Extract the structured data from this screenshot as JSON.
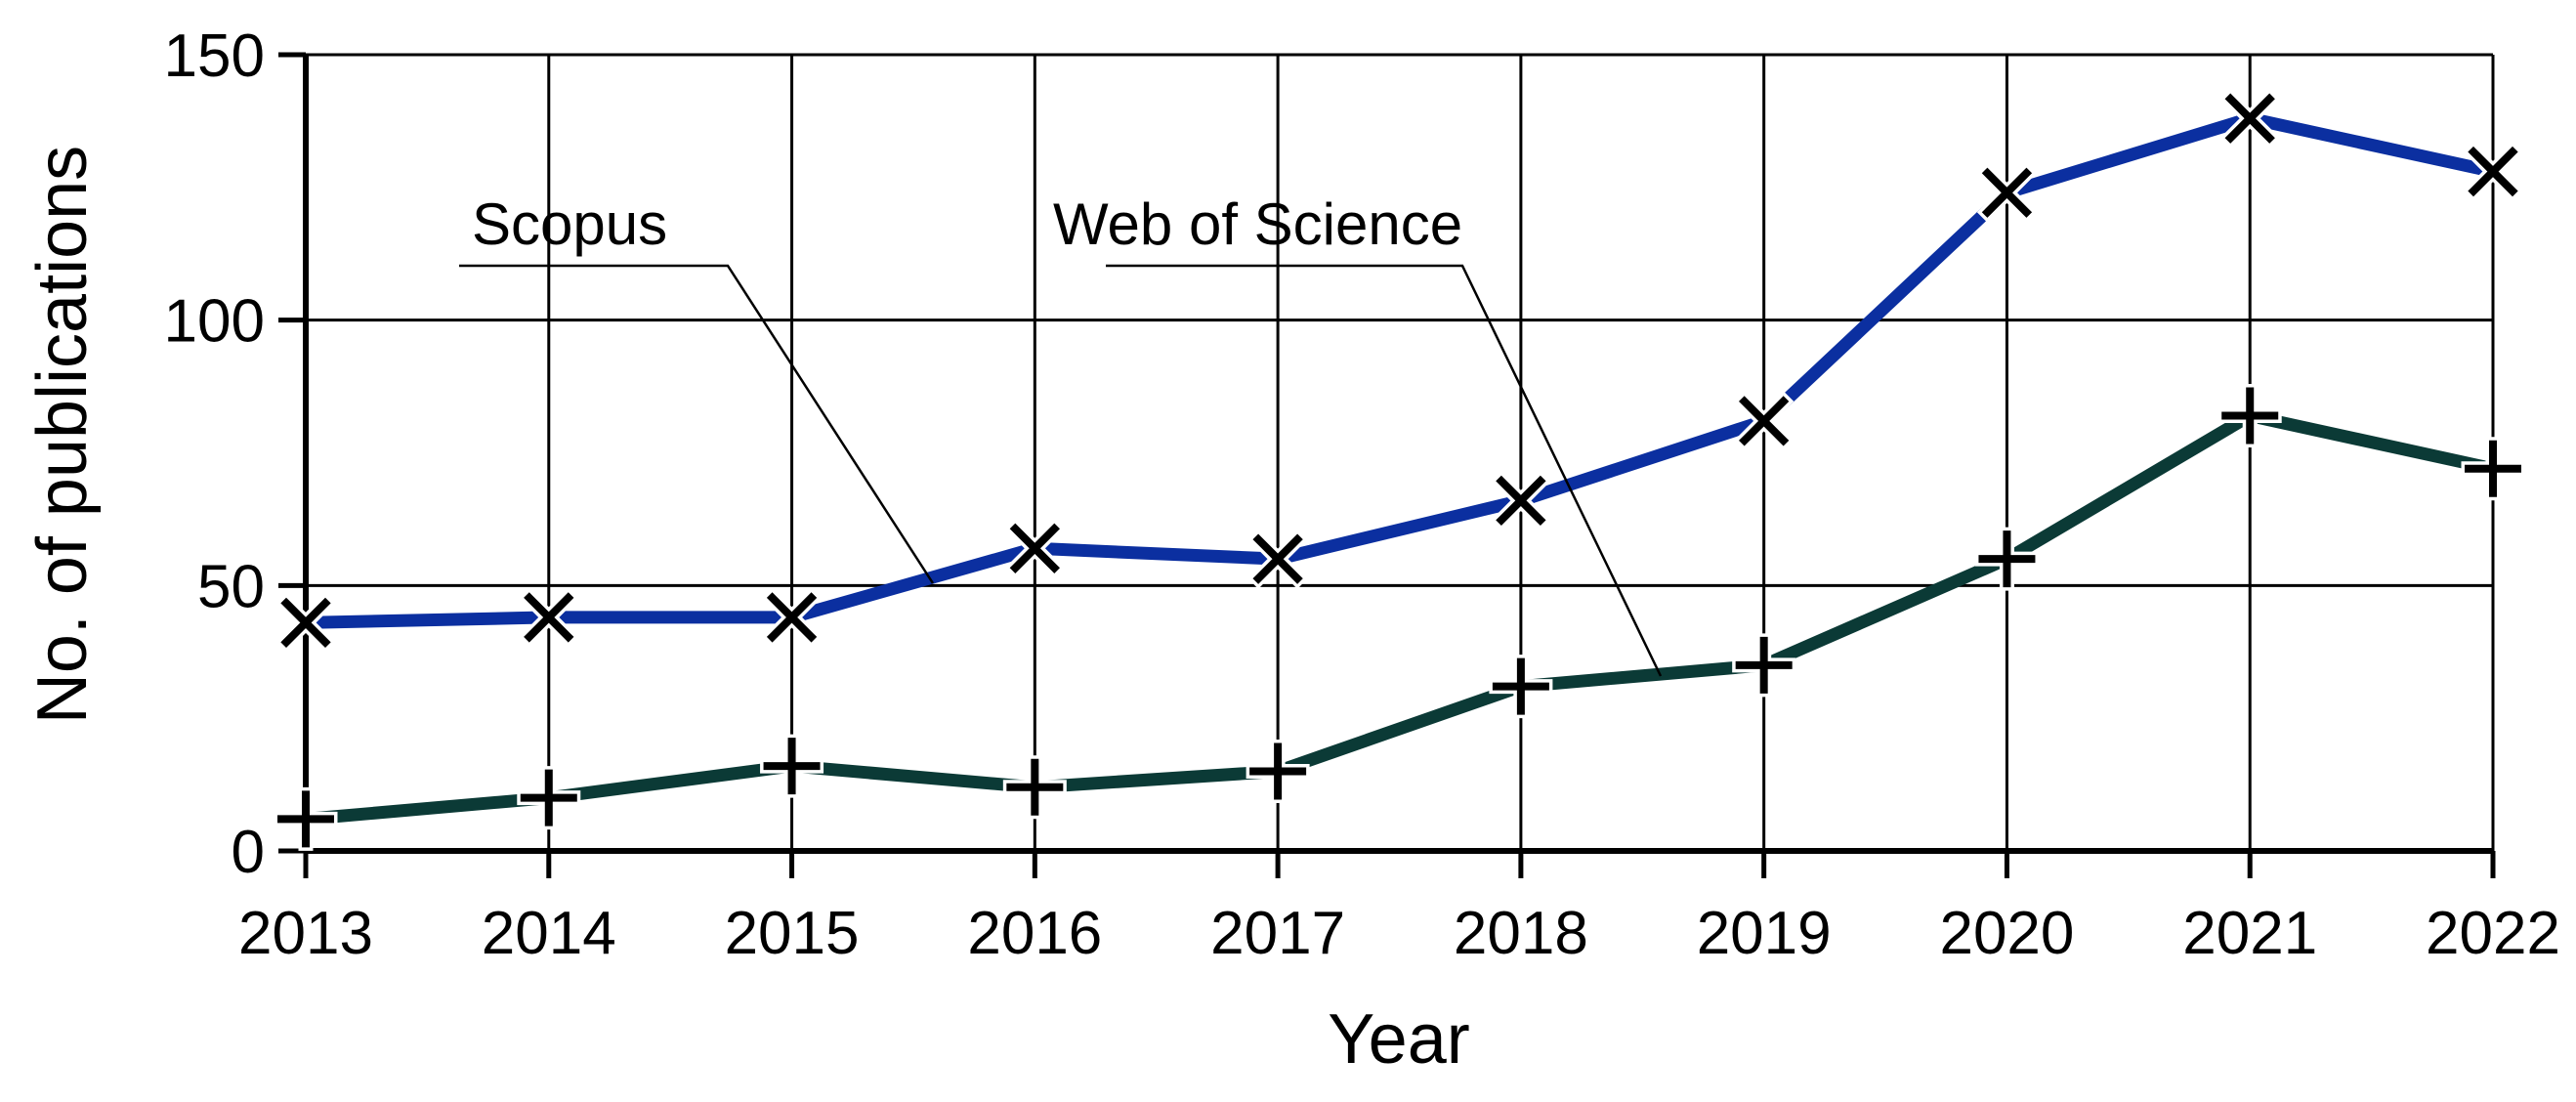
{
  "chart_data": {
    "type": "line",
    "title": "",
    "xlabel": "Year",
    "ylabel": "No. of publications",
    "categories": [
      "2013",
      "2014",
      "2015",
      "2016",
      "2017",
      "2018",
      "2019",
      "2020",
      "2021",
      "2022"
    ],
    "ylim": [
      0,
      150
    ],
    "yticks": [
      "0",
      "50",
      "100",
      "150"
    ],
    "grid": true,
    "legend": "callout labels inside plot",
    "series": [
      {
        "name": "Scopus",
        "color": "#0b2fa0",
        "marker": "x",
        "values": [
          43,
          44,
          44,
          57,
          55,
          66,
          81,
          124,
          138,
          128
        ]
      },
      {
        "name": "Web of Science",
        "color": "#0b3a36",
        "marker": "plus",
        "values": [
          6,
          10,
          16,
          12,
          15,
          31,
          35,
          55,
          82,
          72
        ]
      }
    ]
  }
}
